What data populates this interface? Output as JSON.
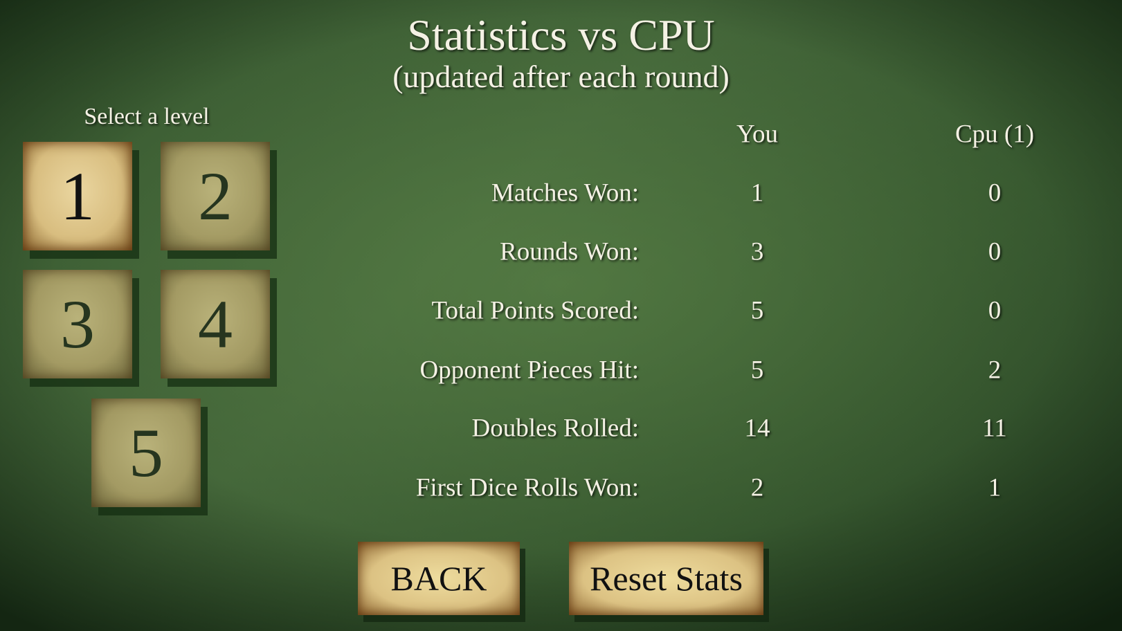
{
  "header": {
    "title": "Statistics vs CPU",
    "subtitle": "(updated after each round)"
  },
  "levels": {
    "label": "Select a level",
    "items": [
      "1",
      "2",
      "3",
      "4",
      "5"
    ],
    "selected": "1"
  },
  "stats": {
    "columns": {
      "you": "You",
      "cpu": "Cpu (1)"
    },
    "rows": [
      {
        "label": "Matches Won:",
        "you": "1",
        "cpu": "0"
      },
      {
        "label": "Rounds Won:",
        "you": "3",
        "cpu": "0"
      },
      {
        "label": "Total Points Scored:",
        "you": "5",
        "cpu": "0"
      },
      {
        "label": "Opponent Pieces Hit:",
        "you": "5",
        "cpu": "2"
      },
      {
        "label": "Doubles Rolled:",
        "you": "14",
        "cpu": "11"
      },
      {
        "label": "First Dice Rolls Won:",
        "you": "2",
        "cpu": "1"
      }
    ]
  },
  "buttons": {
    "back": "BACK",
    "reset": "Reset Stats"
  }
}
